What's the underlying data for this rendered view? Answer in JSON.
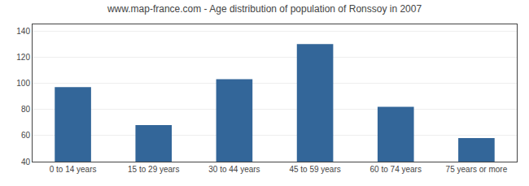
{
  "chart_data": {
    "type": "bar",
    "title": "www.map-france.com - Age distribution of population of Ronssoy in 2007",
    "categories": [
      "0 to 14 years",
      "15 to 29 years",
      "30 to 44 years",
      "45 to 59 years",
      "60 to 74 years",
      "75 years or more"
    ],
    "values": [
      97,
      68,
      103,
      130,
      82,
      58
    ],
    "color": "#336699",
    "ylim": [
      40,
      145
    ],
    "yticks": [
      40,
      60,
      80,
      100,
      120,
      140
    ],
    "grid": true
  }
}
